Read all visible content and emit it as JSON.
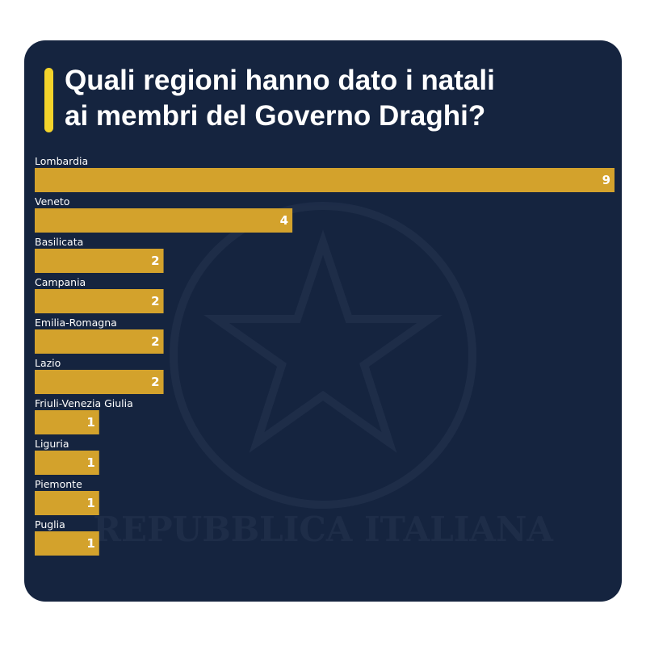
{
  "chart_data": {
    "type": "bar",
    "orientation": "horizontal",
    "title": "Quali regioni hanno dato i natali ai membri del Governo Draghi?",
    "title_lines": [
      "Quali regioni hanno dato i natali",
      "ai membri del Governo Draghi?"
    ],
    "categories": [
      "Lombardia",
      "Veneto",
      "Basilicata",
      "Campania",
      "Emilia-Romagna",
      "Lazio",
      "Friuli-Venezia Giulia",
      "Liguria",
      "Piemonte",
      "Puglia"
    ],
    "values": [
      9,
      4,
      2,
      2,
      2,
      2,
      1,
      1,
      1,
      1
    ],
    "xlim": [
      0,
      9
    ],
    "grid": false,
    "legend": "none",
    "colors": {
      "bar": "#d3a22c",
      "background": "#15243f",
      "accent": "#f3d32b",
      "text": "#ffffff"
    }
  },
  "watermark": {
    "icon": "emblem-icon",
    "text": "REPUBBLICA ITALIANA"
  }
}
